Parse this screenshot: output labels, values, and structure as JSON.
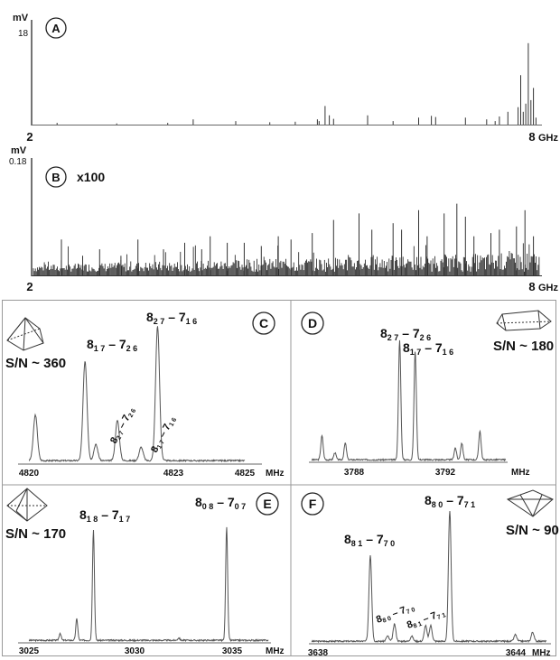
{
  "chart_data": [
    {
      "type": "line",
      "panel": "A",
      "yunit": "mV",
      "ytick": "18",
      "xunit": "GHz",
      "xlim": [
        2,
        8
      ],
      "ylim": [
        0,
        18
      ],
      "xticks": [
        "2",
        "8"
      ],
      "peaks": [
        [
          2.3,
          0.3
        ],
        [
          3.0,
          0.2
        ],
        [
          3.6,
          0.3
        ],
        [
          3.9,
          0.9
        ],
        [
          4.4,
          0.6
        ],
        [
          4.8,
          0.4
        ],
        [
          5.1,
          0.5
        ],
        [
          5.36,
          0.9
        ],
        [
          5.38,
          0.6
        ],
        [
          5.45,
          3.2
        ],
        [
          5.5,
          1.6
        ],
        [
          5.55,
          1.0
        ],
        [
          5.95,
          1.6
        ],
        [
          6.25,
          0.6
        ],
        [
          6.55,
          1.2
        ],
        [
          6.7,
          1.5
        ],
        [
          6.75,
          1.3
        ],
        [
          7.1,
          1.2
        ],
        [
          7.35,
          0.9
        ],
        [
          7.45,
          0.6
        ],
        [
          7.5,
          1.4
        ],
        [
          7.6,
          2.2
        ],
        [
          7.72,
          3.0
        ],
        [
          7.75,
          8.5
        ],
        [
          7.78,
          2.2
        ],
        [
          7.81,
          3.6
        ],
        [
          7.84,
          14.0
        ],
        [
          7.87,
          4.2
        ],
        [
          7.9,
          6.3
        ],
        [
          7.93,
          1.2
        ]
      ]
    },
    {
      "type": "line",
      "panel": "B",
      "yunit": "mV",
      "ytick": "0.18",
      "scale_label": "x100",
      "xunit": "GHz",
      "xlim": [
        2,
        8
      ],
      "ylim": [
        0,
        0.18
      ],
      "xticks": [
        "2",
        "8"
      ],
      "peaks": [
        [
          2.35,
          0.055
        ],
        [
          2.6,
          0.03
        ],
        [
          2.8,
          0.04
        ],
        [
          3.05,
          0.03
        ],
        [
          3.25,
          0.055
        ],
        [
          3.55,
          0.04
        ],
        [
          3.8,
          0.05
        ],
        [
          4.0,
          0.04
        ],
        [
          4.1,
          0.06
        ],
        [
          4.3,
          0.05
        ],
        [
          4.5,
          0.05
        ],
        [
          4.7,
          0.045
        ],
        [
          4.9,
          0.06
        ],
        [
          5.05,
          0.055
        ],
        [
          5.3,
          0.065
        ],
        [
          5.55,
          0.085
        ],
        [
          5.85,
          0.095
        ],
        [
          6.0,
          0.07
        ],
        [
          6.25,
          0.08
        ],
        [
          6.35,
          0.07
        ],
        [
          6.55,
          0.1
        ],
        [
          6.65,
          0.06
        ],
        [
          6.85,
          0.095
        ],
        [
          7.0,
          0.11
        ],
        [
          7.1,
          0.09
        ],
        [
          7.2,
          0.06
        ],
        [
          7.4,
          0.065
        ],
        [
          7.5,
          0.07
        ],
        [
          7.7,
          0.075
        ],
        [
          7.8,
          0.1
        ],
        [
          7.9,
          0.06
        ]
      ]
    },
    {
      "type": "line",
      "panel": "C",
      "sn": "S/N ~ 360",
      "xunit": "MHz",
      "xlim": [
        4820,
        4825
      ],
      "xticks": [
        "4820",
        "4823",
        "4825"
      ],
      "ylim": [
        0,
        1
      ],
      "peaks": [
        [
          4820.15,
          0.34
        ],
        [
          4821.3,
          0.74
        ],
        [
          4821.55,
          0.12
        ],
        [
          4822.05,
          0.3
        ],
        [
          4822.6,
          0.1
        ],
        [
          4822.98,
          1.0
        ]
      ],
      "labels": [
        {
          "main": "8",
          "sub1": "1 7",
          "dash": " – 7",
          "sub2": "2 6"
        },
        {
          "main": "8",
          "sub1": "2 7",
          "dash": " – 7",
          "sub2": "1 6"
        },
        {
          "main": "8",
          "sub1": "2 7",
          "dash": " – 7",
          "sub2": "2 6"
        },
        {
          "main": "8",
          "sub1": "1 7",
          "dash": " – 7",
          "sub2": "1 6"
        }
      ]
    },
    {
      "type": "line",
      "panel": "D",
      "sn": "S/N ~ 180",
      "xunit": "MHz",
      "xlim": [
        3786.3,
        3793.8
      ],
      "xticks": [
        "3788",
        "3792"
      ],
      "ylim": [
        0,
        1
      ],
      "peaks": [
        [
          3786.7,
          0.2
        ],
        [
          3787.2,
          0.06
        ],
        [
          3787.6,
          0.14
        ],
        [
          3789.7,
          1.0
        ],
        [
          3790.3,
          0.91
        ],
        [
          3791.85,
          0.1
        ],
        [
          3792.1,
          0.14
        ],
        [
          3792.8,
          0.24
        ]
      ],
      "labels": [
        {
          "main": "8",
          "sub1": "2 7",
          "dash": " – 7",
          "sub2": "2 6"
        },
        {
          "main": "8",
          "sub1": "1 7",
          "dash": " – 7",
          "sub2": "1 6"
        }
      ]
    },
    {
      "type": "line",
      "panel": "E",
      "sn": "S/N ~ 170",
      "xunit": "MHz",
      "xlim": [
        3025,
        3036.5
      ],
      "xticks": [
        "3025",
        "3030",
        "3035"
      ],
      "ylim": [
        0,
        1
      ],
      "peaks": [
        [
          3026.5,
          0.06
        ],
        [
          3027.3,
          0.18
        ],
        [
          3028.1,
          0.92
        ],
        [
          3032.2,
          0.02
        ],
        [
          3034.5,
          0.95
        ]
      ],
      "labels": [
        {
          "main": "8",
          "sub1": "1 8",
          "dash": " – 7",
          "sub2": "1 7"
        },
        {
          "main": "8",
          "sub1": "0 8",
          "dash": " – 7",
          "sub2": "0 7"
        }
      ]
    },
    {
      "type": "line",
      "panel": "F",
      "sn": "S/N ~ 90",
      "xunit": "MHz",
      "xlim": [
        3638,
        3644.8
      ],
      "xticks": [
        "3638",
        "3644"
      ],
      "ylim": [
        0,
        1
      ],
      "peaks": [
        [
          3639.7,
          0.66
        ],
        [
          3640.2,
          0.04
        ],
        [
          3640.4,
          0.13
        ],
        [
          3640.9,
          0.04
        ],
        [
          3641.3,
          0.12
        ],
        [
          3641.45,
          0.12
        ],
        [
          3642.0,
          1.0
        ],
        [
          3643.9,
          0.05
        ],
        [
          3644.4,
          0.07
        ]
      ],
      "labels": [
        {
          "main": "8",
          "sub1": "8 1",
          "dash": " – 7",
          "sub2": "7 0"
        },
        {
          "main": "8",
          "sub1": "8 0",
          "dash": " – 7",
          "sub2": "7 1"
        },
        {
          "main": "8",
          "sub1": "8 0",
          "dash": " – 7",
          "sub2": "7 0"
        },
        {
          "main": "8",
          "sub1": "8 1",
          "dash": " – 7",
          "sub2": "7 1"
        }
      ]
    }
  ]
}
